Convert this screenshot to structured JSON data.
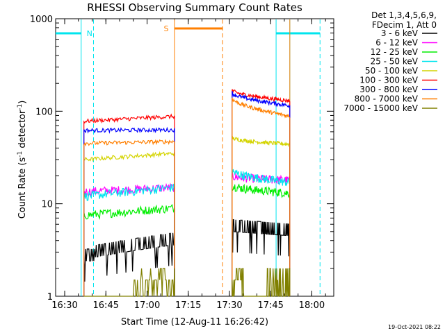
{
  "chart_data": {
    "type": "line",
    "title": "RHESSI Observing Summary Count Rates",
    "xlabel": "Start Time (12-Aug-11 16:26:42)",
    "ylabel": "Count Rate (s",
    "ylabel_sup1": "-1",
    "ylabel_mid": " detector",
    "ylabel_sup2": "-1",
    "ylabel_end": ")",
    "y_scale": "log",
    "ylim": [
      1,
      1000
    ],
    "xlim": [
      "16:26:42",
      "18:08:00"
    ],
    "x_ticks": [
      "16:30",
      "16:45",
      "17:00",
      "17:15",
      "17:30",
      "17:45",
      "18:00"
    ],
    "y_ticks": [
      "1",
      "10",
      "100",
      "1000"
    ],
    "legend_header": [
      "Det 1,3,4,5,6,9,",
      "FDecim 1, Att 0"
    ],
    "timestamp": "19-Oct-2021 08:22",
    "markers": {
      "night": [
        {
          "label": "N",
          "start": "16:26:42",
          "end": "16:36:00",
          "color": "#00e5ee"
        },
        {
          "label": "",
          "start": "17:47:00",
          "end": "18:03:00",
          "color": "#00e5ee"
        }
      ],
      "saa": {
        "label": "S",
        "start": "17:10:00",
        "end": "17:27:30",
        "color": "#ff7f00"
      },
      "cyan_lines": [
        "16:36:00",
        "16:40:30",
        "17:47:00",
        "17:52:00",
        "18:03:00"
      ],
      "orange_solid": [
        "17:10:00",
        "17:52:00"
      ],
      "orange_dashed": [
        "17:27:30"
      ]
    },
    "segments": [
      {
        "start": "16:37:00",
        "end": "17:10:00"
      },
      {
        "start": "17:31:00",
        "end": "17:52:00"
      }
    ],
    "series": [
      {
        "name": "3 - 6 keV",
        "color": "#000000",
        "values": [
          [
            2.5,
            3.6
          ],
          [
            5.0,
            4.5
          ]
        ]
      },
      {
        "name": "6 - 12 keV",
        "color": "#ff00ff",
        "values": [
          [
            13.5,
            15.0
          ],
          [
            20.0,
            18.0
          ]
        ]
      },
      {
        "name": "12 - 25 keV",
        "color": "#00ee00",
        "values": [
          [
            7.5,
            9.0
          ],
          [
            16.0,
            13.0
          ]
        ]
      },
      {
        "name": "25 - 50 keV",
        "color": "#00e5ee",
        "values": [
          [
            12.0,
            15.0
          ],
          [
            23.0,
            17.0
          ]
        ]
      },
      {
        "name": "50 - 100 keV",
        "color": "#d4d400",
        "values": [
          [
            30.0,
            35.0
          ],
          [
            52.0,
            44.0
          ]
        ]
      },
      {
        "name": "100 - 300 keV",
        "color": "#ff0000",
        "values": [
          [
            78.0,
            88.0
          ],
          [
            170.0,
            130.0
          ]
        ]
      },
      {
        "name": "300 - 800 keV",
        "color": "#0000ff",
        "values": [
          [
            62.0,
            63.0
          ],
          [
            160.0,
            115.0
          ]
        ]
      },
      {
        "name": "800 - 7000 keV",
        "color": "#ff7f00",
        "values": [
          [
            45.0,
            47.0
          ],
          [
            140.0,
            88.0
          ]
        ]
      },
      {
        "name": "7000 - 15000 keV",
        "color": "#808000",
        "values": [
          [
            1.0,
            1.5
          ],
          [
            1.0,
            1.5
          ]
        ]
      }
    ]
  }
}
